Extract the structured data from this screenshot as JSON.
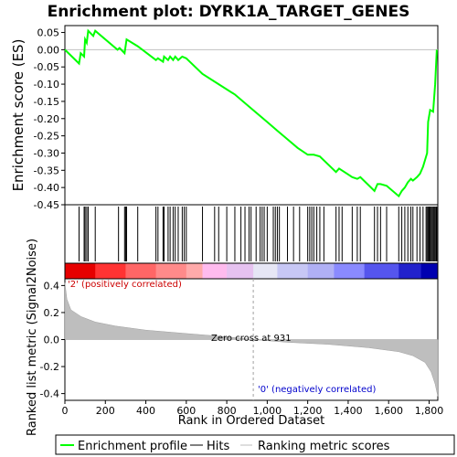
{
  "title": "Enrichment plot: DYRK1A_TARGET_GENES",
  "colors": {
    "enrichment_line": "#00ff00",
    "hits": "#000000",
    "metric_fill": "#bebebe",
    "positive_label": "#cc0000",
    "negative_label": "#0000cc",
    "zero_cross_line": "#a0a0a0"
  },
  "top_panel": {
    "ylabel": "Enrichment score (ES)",
    "yticks": [
      "0.05",
      "0.00",
      "-0.05",
      "-0.10",
      "-0.15",
      "-0.20",
      "-0.25",
      "-0.30",
      "-0.35",
      "-0.40",
      "-0.45"
    ]
  },
  "bottom_panel": {
    "ylabel": "Ranked list metric (Signal2Noise)",
    "xlabel": "Rank in Ordered Dataset",
    "yticks": [
      "0.4",
      "0.2",
      "0.0",
      "-0.2",
      "-0.4"
    ],
    "xticks": [
      "0",
      "200",
      "400",
      "600",
      "800",
      "1,000",
      "1,200",
      "1,400",
      "1,600",
      "1,800"
    ],
    "positive_label": "'2' (positively correlated)",
    "negative_label": "'0' (negatively correlated)",
    "zero_cross_label": "Zero cross at 931"
  },
  "legend": {
    "items": [
      {
        "label": "Enrichment profile",
        "color": "#00ff00"
      },
      {
        "label": "Hits",
        "color": "#000000"
      },
      {
        "label": "Ranking metric scores",
        "color": "#bebebe"
      }
    ]
  },
  "chart_data": {
    "type": "line",
    "x_range": [
      0,
      1843
    ],
    "es_ylim": [
      -0.45,
      0.07
    ],
    "metric_ylim": [
      -0.45,
      0.45
    ],
    "zero_cross": 931,
    "enrichment_profile": [
      [
        0,
        0.0
      ],
      [
        70,
        -0.04
      ],
      [
        78,
        -0.01
      ],
      [
        95,
        -0.02
      ],
      [
        100,
        0.03
      ],
      [
        108,
        0.02
      ],
      [
        115,
        0.055
      ],
      [
        140,
        0.04
      ],
      [
        150,
        0.055
      ],
      [
        260,
        0.0
      ],
      [
        270,
        0.005
      ],
      [
        295,
        -0.01
      ],
      [
        305,
        0.03
      ],
      [
        360,
        0.01
      ],
      [
        450,
        -0.03
      ],
      [
        460,
        -0.025
      ],
      [
        485,
        -0.035
      ],
      [
        490,
        -0.02
      ],
      [
        510,
        -0.03
      ],
      [
        520,
        -0.02
      ],
      [
        535,
        -0.03
      ],
      [
        545,
        -0.02
      ],
      [
        560,
        -0.03
      ],
      [
        580,
        -0.02
      ],
      [
        600,
        -0.025
      ],
      [
        680,
        -0.07
      ],
      [
        760,
        -0.1
      ],
      [
        840,
        -0.13
      ],
      [
        920,
        -0.17
      ],
      [
        1000,
        -0.21
      ],
      [
        1050,
        -0.235
      ],
      [
        1100,
        -0.26
      ],
      [
        1150,
        -0.285
      ],
      [
        1200,
        -0.305
      ],
      [
        1230,
        -0.305
      ],
      [
        1260,
        -0.31
      ],
      [
        1340,
        -0.355
      ],
      [
        1355,
        -0.345
      ],
      [
        1420,
        -0.37
      ],
      [
        1445,
        -0.375
      ],
      [
        1460,
        -0.37
      ],
      [
        1530,
        -0.41
      ],
      [
        1545,
        -0.39
      ],
      [
        1560,
        -0.39
      ],
      [
        1590,
        -0.395
      ],
      [
        1650,
        -0.425
      ],
      [
        1665,
        -0.41
      ],
      [
        1680,
        -0.4
      ],
      [
        1695,
        -0.385
      ],
      [
        1710,
        -0.375
      ],
      [
        1720,
        -0.38
      ],
      [
        1740,
        -0.37
      ],
      [
        1755,
        -0.36
      ],
      [
        1770,
        -0.34
      ],
      [
        1790,
        -0.3
      ],
      [
        1795,
        -0.21
      ],
      [
        1805,
        -0.175
      ],
      [
        1820,
        -0.18
      ],
      [
        1830,
        -0.1
      ],
      [
        1838,
        0.0
      ]
    ],
    "hit_ranks": [
      70,
      95,
      100,
      108,
      115,
      150,
      265,
      295,
      300,
      305,
      360,
      450,
      460,
      485,
      490,
      510,
      520,
      535,
      545,
      560,
      580,
      590,
      600,
      680,
      740,
      760,
      800,
      840,
      870,
      890,
      910,
      920,
      945,
      965,
      975,
      985,
      1000,
      1030,
      1040,
      1050,
      1060,
      1100,
      1130,
      1160,
      1200,
      1210,
      1220,
      1230,
      1245,
      1260,
      1280,
      1340,
      1355,
      1370,
      1420,
      1445,
      1460,
      1530,
      1545,
      1560,
      1590,
      1650,
      1665,
      1680,
      1695,
      1710,
      1720,
      1740,
      1755,
      1770,
      1785,
      1790,
      1795,
      1800,
      1805,
      1810,
      1815,
      1820,
      1825,
      1830,
      1835,
      1838
    ],
    "ranking_metric": [
      [
        0,
        0.42
      ],
      [
        10,
        0.3
      ],
      [
        30,
        0.22
      ],
      [
        80,
        0.17
      ],
      [
        150,
        0.13
      ],
      [
        250,
        0.1
      ],
      [
        400,
        0.07
      ],
      [
        600,
        0.045
      ],
      [
        800,
        0.02
      ],
      [
        931,
        0.0
      ],
      [
        1100,
        -0.02
      ],
      [
        1300,
        -0.035
      ],
      [
        1500,
        -0.06
      ],
      [
        1650,
        -0.09
      ],
      [
        1720,
        -0.12
      ],
      [
        1780,
        -0.17
      ],
      [
        1810,
        -0.24
      ],
      [
        1830,
        -0.33
      ],
      [
        1843,
        -0.42
      ]
    ],
    "heatmap_colors": [
      [
        0,
        "#e60000"
      ],
      [
        150,
        "#ff3333"
      ],
      [
        300,
        "#ff6666"
      ],
      [
        450,
        "#ff8a8a"
      ],
      [
        600,
        "#ffaaaa"
      ],
      [
        680,
        "#ffbbee"
      ],
      [
        800,
        "#e6c2f0"
      ],
      [
        931,
        "#e6e6f5"
      ],
      [
        1050,
        "#c7c7f5"
      ],
      [
        1200,
        "#b0b0f5"
      ],
      [
        1330,
        "#8a8aff"
      ],
      [
        1480,
        "#5555ee"
      ],
      [
        1650,
        "#2222cc"
      ],
      [
        1760,
        "#0000b0"
      ],
      [
        1843,
        "#000090"
      ]
    ]
  }
}
